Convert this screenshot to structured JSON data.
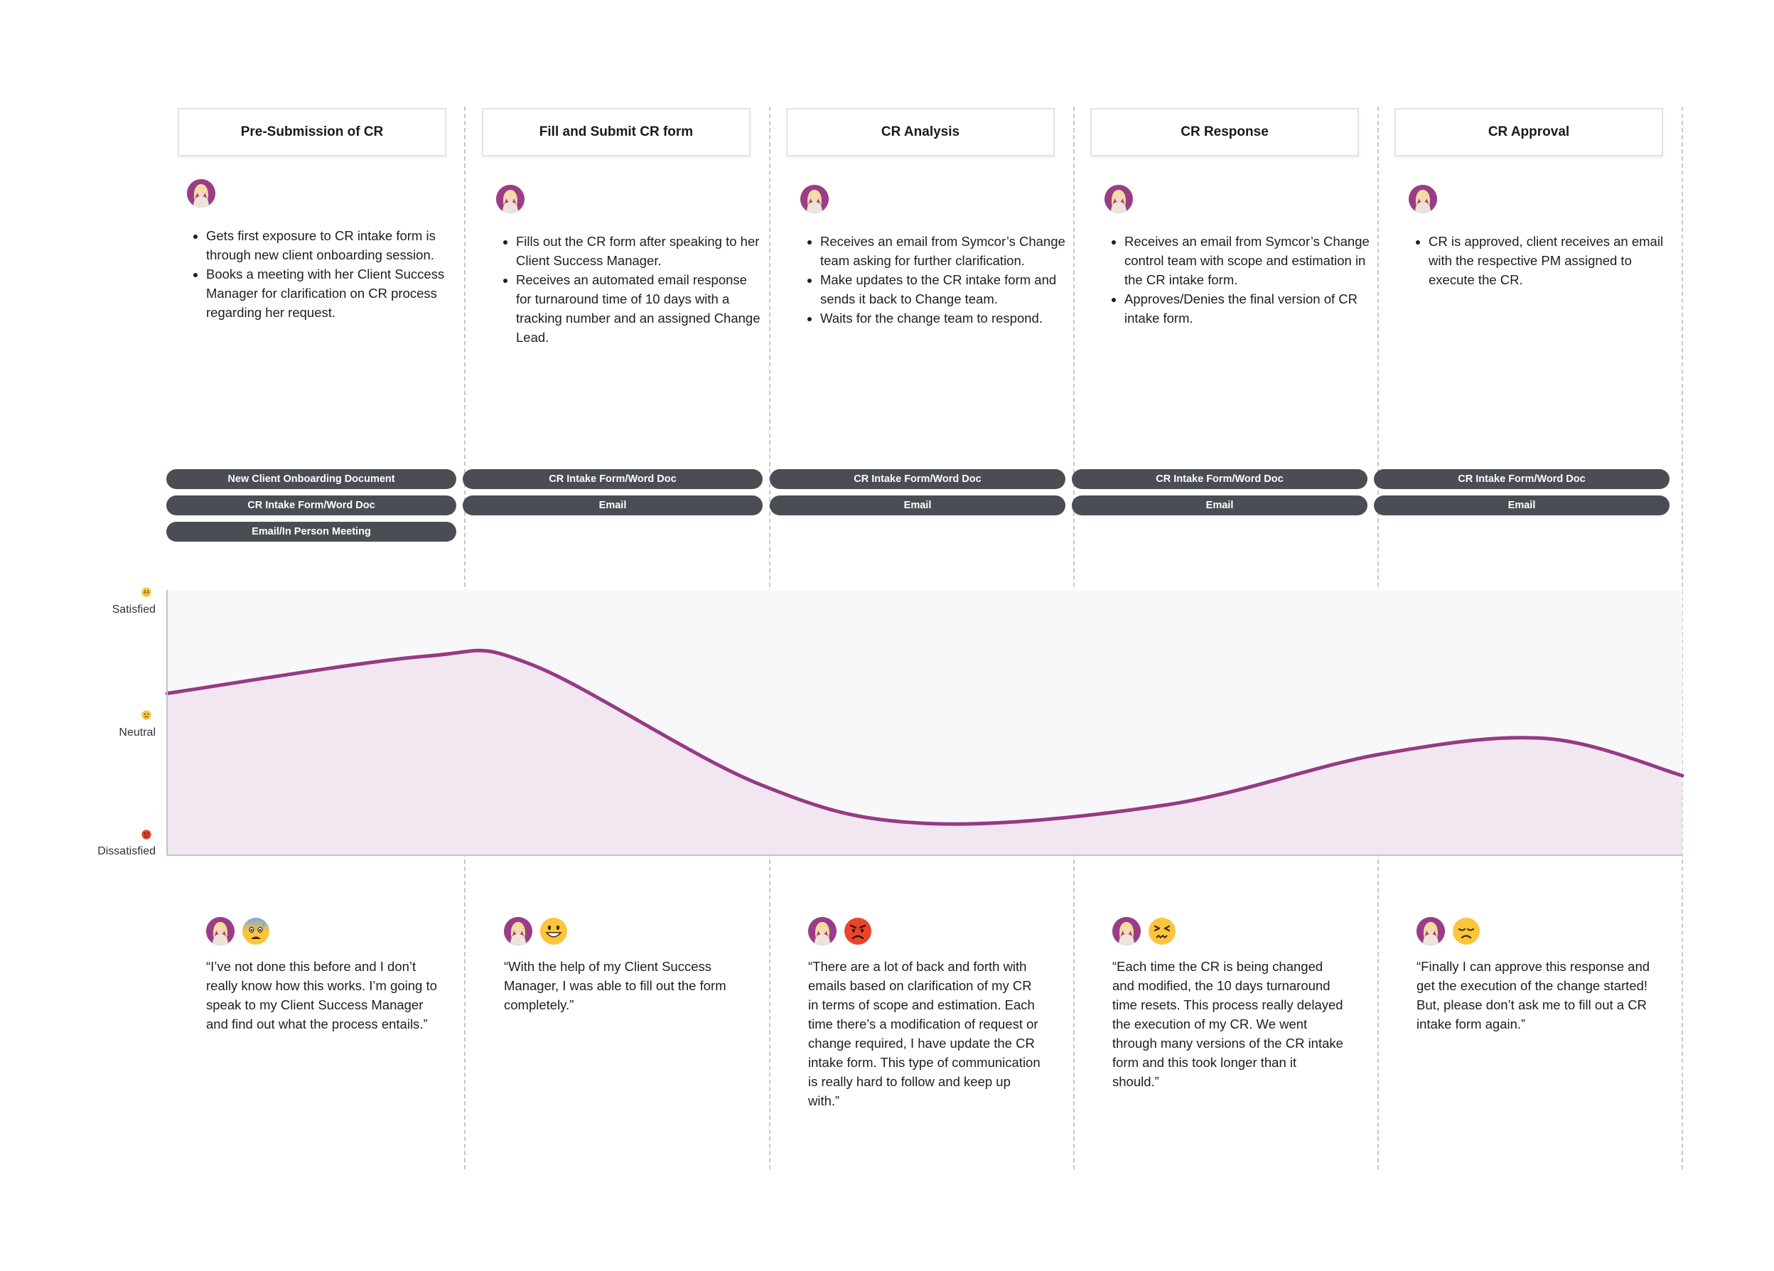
{
  "stages": [
    {
      "title": "Pre-Submission of CR",
      "actions": [
        "Gets first exposure to CR intake form is through new client onboarding session.",
        "Books a meeting with her Client Success Manager for clarification on CR process regarding her request."
      ],
      "touchpoints": [
        "New Client Onboarding Document",
        "CR Intake Form/Word Doc",
        "Email/In Person Meeting"
      ],
      "emotion_icon": "anxious-sweat-face",
      "quote": "“I’ve not done this before and I don’t really know how this works. I’m going to speak to my Client Success Manager and find out what the process entails.”"
    },
    {
      "title": "Fill and Submit CR form",
      "actions": [
        "Fills out the CR form after speaking to her Client Success Manager.",
        "Receives an automated email response for turnaround time of 10 days with a tracking number and an assigned Change Lead."
      ],
      "touchpoints": [
        "CR Intake Form/Word Doc",
        "Email"
      ],
      "emotion_icon": "grinning-face",
      "quote": "“With the help of my Client Success Manager, I was able to fill out the form completely.”"
    },
    {
      "title": "CR Analysis",
      "actions": [
        "Receives an email from Symcor’s Change team asking for further clarification.",
        "Make updates to the CR intake form and sends it back to Change team.",
        "Waits for the change team to respond."
      ],
      "touchpoints": [
        "CR Intake Form/Word Doc",
        "Email"
      ],
      "emotion_icon": "angry-face",
      "quote": "“There are a lot of back and forth with emails based on clarification of my CR in terms of scope and estimation. Each time there’s a modification of request or change required, I have update the CR intake form. This type of communication is really hard to follow and keep up with.”"
    },
    {
      "title": "CR Response",
      "actions": [
        "Receives an email from Symcor’s Change control team with scope and estimation in the CR intake form.",
        "Approves/Denies the final version of CR intake form."
      ],
      "touchpoints": [
        "CR Intake Form/Word Doc",
        "Email"
      ],
      "emotion_icon": "confounded-face",
      "quote": "“Each time the CR is being changed and modified, the 10 days turnaround time resets. This process really delayed the execution of my CR. We went through many versions of the CR intake form and this took longer than it should.”"
    },
    {
      "title": "CR Approval",
      "actions": [
        "CR is approved, client receives an email with the respective PM assigned to execute the CR."
      ],
      "touchpoints": [
        "CR Intake Form/Word Doc",
        "Email"
      ],
      "emotion_icon": "disappointed-face",
      "quote": "“Finally I can approve this response and get the execution of the change started! But, please don’t ask me to fill out a CR intake form again.”"
    }
  ],
  "emotion_scale": {
    "labels": [
      "Satisfied",
      "Neutral",
      "Dissatisfied"
    ],
    "icons": [
      "grinning-face",
      "neutral-face",
      "angry-face"
    ]
  },
  "chart_data": {
    "type": "area",
    "title": "",
    "xlabel": "",
    "ylabel": "",
    "categories": [
      "Pre-Submission of CR",
      "Fill and Submit CR form",
      "CR Analysis",
      "CR Response",
      "CR Approval"
    ],
    "y_scale": [
      "Dissatisfied",
      "Neutral",
      "Satisfied"
    ],
    "ylim": [
      0,
      1
    ],
    "x_range": [
      0,
      5
    ],
    "curve": {
      "x": [
        0,
        0.85,
        1.2,
        1.95,
        2.5,
        3.3,
        4.0,
        4.55,
        5.0
      ],
      "y": [
        0.61,
        0.75,
        0.72,
        0.27,
        0.12,
        0.19,
        0.38,
        0.44,
        0.3
      ]
    },
    "colors": {
      "line": "#953b82",
      "fill": "#f1e3ee",
      "band": "#f8f8fa"
    },
    "grid": false,
    "legend": "none"
  }
}
